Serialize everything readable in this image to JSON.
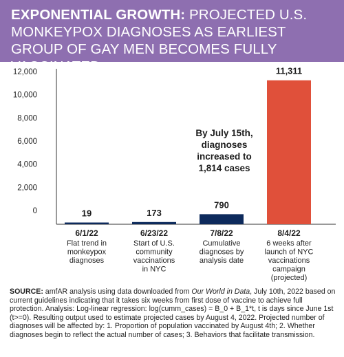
{
  "header": {
    "title_bold": "EXPONENTIAL GROWTH:",
    "title_rest": "PROJECTED U.S. MONKEYPOX DIAGNOSES AS EARLIEST GROUP OF GAY MEN BECOMES FULLY VACCINATED"
  },
  "annotation": {
    "lines": [
      "By July 15th,",
      "diagnoses",
      "increased to",
      "1,814 cases"
    ]
  },
  "source": {
    "label": "SOURCE:",
    "text_a": " amfAR analysis using data downloaded from ",
    "text_italic": "Our World in Data",
    "text_b": ", July 10th, 2022 based on current guidelines indicating that it takes six weeks from first dose of vaccine to achieve full protection. Analysis: Log-linear regression: log(cumm_cases) = B_0 + B_1*t, t is days since June 1st (t>=0). Resulting output used to estimate projected cases by August 4, 2022. Projected number of diagnoses will be affected by: 1. Proportion of population vaccinated by August 4th; 2. Whether diagnoses begin to reflect the actual number of cases; 3. Behaviors that facilitate transmission."
  },
  "colors": {
    "header": "#8e6fb0",
    "navy": "#0d2a5c",
    "orange": "#e0503a"
  },
  "chart_data": {
    "type": "bar",
    "y_ticks": [
      "12,000",
      "10,000",
      "8,000",
      "6,000",
      "4,000",
      "2,000",
      "0"
    ],
    "y_tick_values": [
      12000,
      10000,
      8000,
      6000,
      4000,
      2000,
      0
    ],
    "categories": [
      "6/1/22",
      "6/23/22",
      "7/8/22",
      "8/4/22"
    ],
    "values": [
      19,
      173,
      790,
      11311
    ],
    "value_labels": [
      "19",
      "173",
      "790",
      "11,311"
    ],
    "descriptions": [
      [
        "Flat trend in",
        "monkeypox",
        "diagnoses"
      ],
      [
        "Start of U.S.",
        "community",
        "vaccinations",
        "in NYC"
      ],
      [
        "Cumulative",
        "diagnoses by",
        "analysis date"
      ],
      [
        "6 weeks after",
        "launch of NYC",
        "vaccinations",
        "campaign",
        "(projected)"
      ]
    ],
    "bar_colors": [
      "#0d2a5c",
      "#0d2a5c",
      "#0d2a5c",
      "#e0503a"
    ],
    "ylim": [
      0,
      12000
    ]
  }
}
